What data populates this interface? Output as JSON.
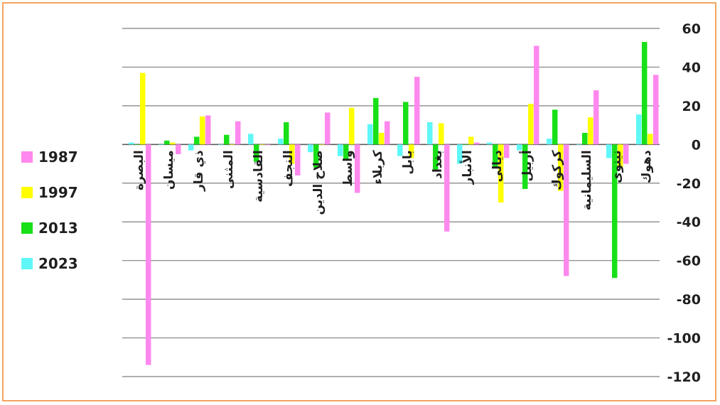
{
  "chart_data": {
    "type": "bar",
    "orientation": "vertical",
    "y_axis_position": "right",
    "categories": [
      "البصرة",
      "ميسان",
      "ذي قار",
      "المثنى",
      "القادسية",
      "النجف",
      "صلاح الدين",
      "واسط",
      "كربلاء",
      "بابل",
      "بغداد",
      "الأنبار",
      "ديالى",
      "أربيل",
      "كركوك",
      "السليمانية",
      "نينوى",
      "دهوك"
    ],
    "series": [
      {
        "name": "2023",
        "color": "#5ff7f7",
        "values": [
          1,
          0,
          -3,
          0,
          5.5,
          3,
          -4,
          -6,
          10.5,
          -6,
          11.5,
          -10,
          1,
          -3,
          3,
          0,
          -7,
          15.5
        ]
      },
      {
        "name": "2013",
        "color": "#18e018",
        "values": [
          0,
          2,
          4,
          5,
          -9,
          11.5,
          -12,
          -8,
          24,
          22,
          -13,
          0,
          -12,
          -23,
          18,
          6,
          -69,
          53
        ]
      },
      {
        "name": "1997",
        "color": "#ffff00",
        "values": [
          37,
          1,
          14.5,
          0,
          0,
          -10,
          0,
          19,
          6,
          -7,
          11,
          4,
          -30,
          21,
          -24,
          14,
          -12,
          5.5
        ]
      },
      {
        "name": "1987",
        "color": "#ff88ee",
        "values": [
          -114,
          -5,
          15,
          12,
          0,
          -16,
          16.5,
          -25,
          12,
          35,
          -45,
          1,
          -7,
          51,
          -68,
          28,
          -10,
          36
        ]
      }
    ],
    "ylim": [
      -120,
      60
    ],
    "yticks": [
      "60",
      "40",
      "20",
      "0",
      "-20",
      "-40",
      "-60",
      "-80",
      "-100",
      "-120"
    ],
    "grid": true,
    "legend_placement": "left",
    "title": "",
    "xlabel": "",
    "ylabel": ""
  },
  "legend": {
    "items": [
      {
        "label": "1987",
        "color": "#ff88ee"
      },
      {
        "label": "1997",
        "color": "#ffff00"
      },
      {
        "label": "2013",
        "color": "#18e018"
      },
      {
        "label": "2023",
        "color": "#5ff7f7"
      }
    ]
  }
}
